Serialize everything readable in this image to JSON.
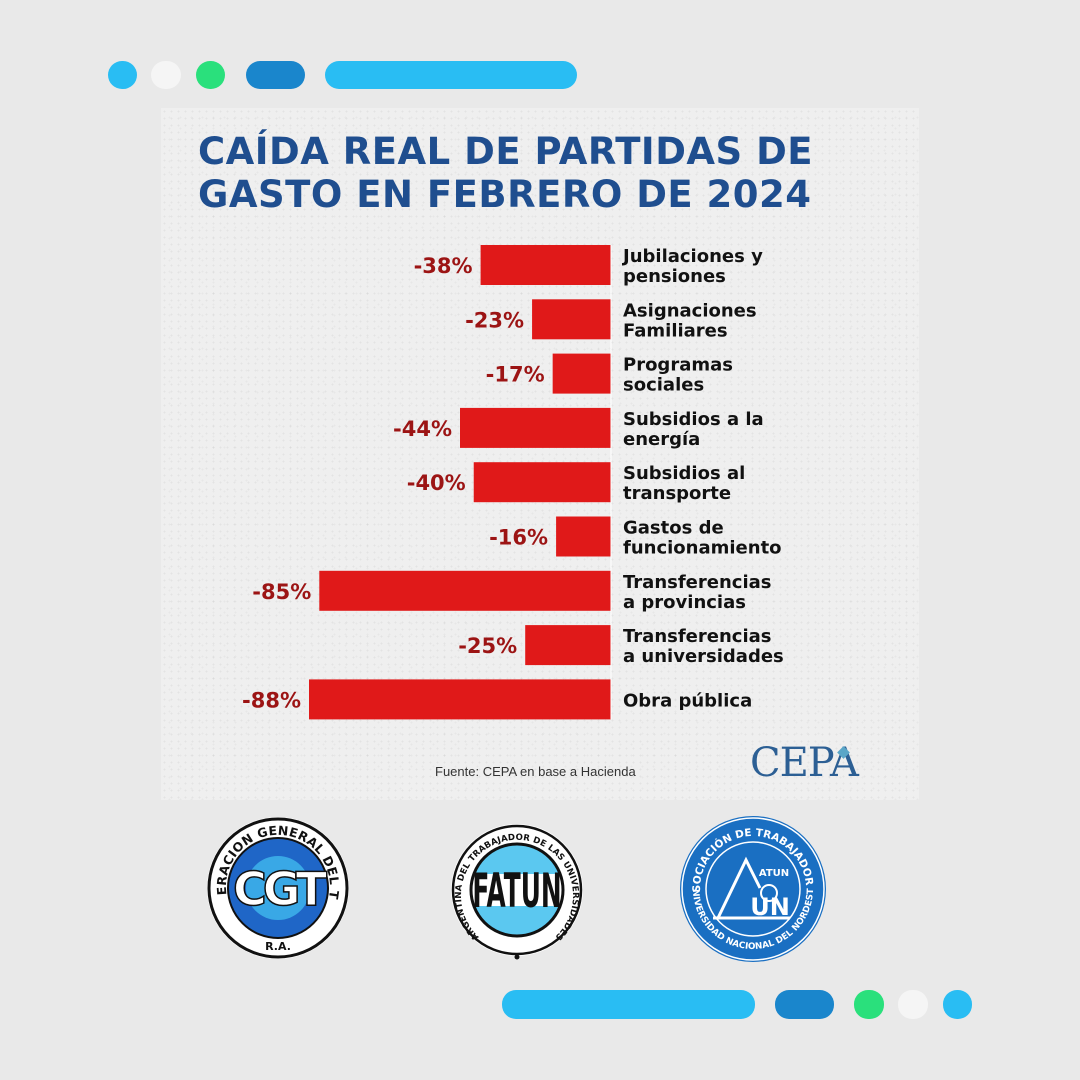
{
  "title_lines": [
    "CAÍDA REAL DE PARTIDAS DE",
    "GASTO EN FEBRERO DE 2024"
  ],
  "source": "Fuente: CEPA en base a Hacienda",
  "cepa_logo": "CEPA",
  "colors": {
    "bar": "#e01919",
    "value_label": "#9c1414",
    "category_label": "#111111",
    "title": "#1f4e8f",
    "accent_light_blue": "#29bdf3",
    "accent_dark_blue": "#1a86cc",
    "accent_green": "#2ae07c",
    "accent_white": "#f5f5f5"
  },
  "chart_data": {
    "type": "bar",
    "orientation": "horizontal",
    "title": "CAÍDA REAL DE PARTIDAS DE GASTO EN FEBRERO DE 2024",
    "categories": [
      [
        "Jubilaciones y",
        "pensiones"
      ],
      [
        "Asignaciones",
        "Familiares"
      ],
      [
        "Programas",
        "sociales"
      ],
      [
        "Subsidios a la",
        "energía"
      ],
      [
        "Subsidios al",
        "transporte"
      ],
      [
        "Gastos de",
        "funcionamiento"
      ],
      [
        "Transferencias",
        "a provincias"
      ],
      [
        "Transferencias",
        "a universidades"
      ],
      [
        "Obra pública"
      ]
    ],
    "values": [
      -38,
      -23,
      -17,
      -44,
      -40,
      -16,
      -85,
      -25,
      -88
    ],
    "value_labels": [
      "-38%",
      "-23%",
      "-17%",
      "-44%",
      "-40%",
      "-16%",
      "-85%",
      "-25%",
      "-88%"
    ],
    "xlim": [
      -88,
      0
    ],
    "grid": false,
    "legend": "none"
  },
  "logos": {
    "cgt": {
      "ring_text": "CONFEDERACION GENERAL DEL TRABAJO",
      "center": "CGT",
      "bottom": "R.A.",
      "colors": {
        "ring": "#1f66c7",
        "center": "#39a8e6"
      }
    },
    "fatun": {
      "ring_text": "FEDERACION ARGENTINA DEL TRABAJADOR DE LAS UNIVERSIDADES NACIONALES",
      "center": "FATUN",
      "colors": {
        "stripe": "#5bc8f0"
      }
    },
    "atun": {
      "ring_top": "ASOCIACIÓN DE TRABAJADORES",
      "ring_bottom": "UNIVERSIDAD NACIONAL DEL NORDESTE",
      "mark": "ATUN",
      "center": "UN",
      "colors": {
        "disc": "#1a6fc2"
      }
    }
  }
}
